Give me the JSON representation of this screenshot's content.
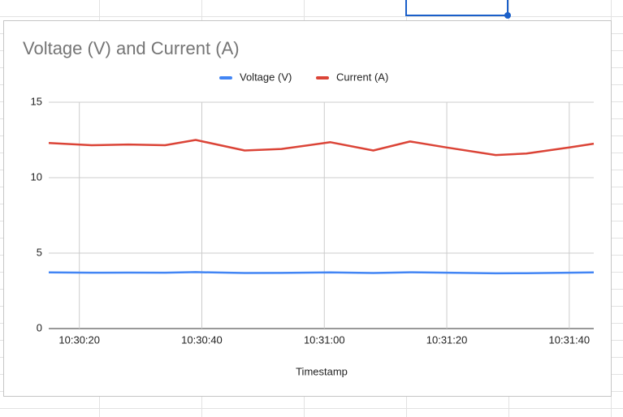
{
  "chart_data": {
    "type": "line",
    "title": "Voltage (V) and Current (A)",
    "x_label": "Timestamp",
    "x": [
      "10:30:15",
      "10:30:22",
      "10:30:28",
      "10:30:34",
      "10:30:39",
      "10:30:47",
      "10:30:53",
      "10:31:01",
      "10:31:08",
      "10:31:14",
      "10:31:20",
      "10:31:28",
      "10:31:33",
      "10:31:40",
      "10:31:44"
    ],
    "series": [
      {
        "name": "Voltage (V)",
        "color": "#4285f4",
        "values": [
          3.72,
          3.7,
          3.71,
          3.7,
          3.74,
          3.68,
          3.69,
          3.72,
          3.68,
          3.73,
          3.7,
          3.66,
          3.67,
          3.7,
          3.72
        ]
      },
      {
        "name": "Current (A)",
        "color": "#db4437",
        "values": [
          12.3,
          12.15,
          12.2,
          12.15,
          12.5,
          11.8,
          11.9,
          12.35,
          11.8,
          12.4,
          12.0,
          11.5,
          11.6,
          12.0,
          12.25
        ]
      }
    ],
    "xlim": [
      "10:30:15",
      "10:31:44"
    ],
    "xticks": [
      "10:30:20",
      "10:30:40",
      "10:31:00",
      "10:31:20",
      "10:31:40"
    ],
    "ylim": [
      0,
      15
    ],
    "yticks": [
      0,
      5,
      10,
      15
    ],
    "grid": true,
    "legend": "top"
  }
}
